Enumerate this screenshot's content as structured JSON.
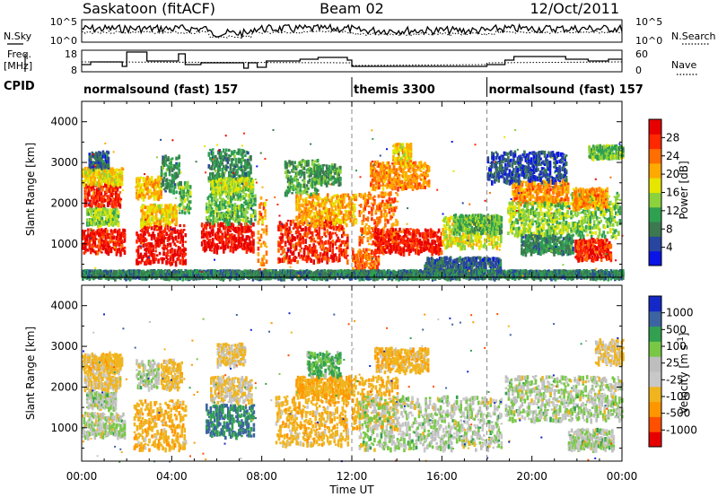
{
  "header": {
    "title_left": "Saskatoon (fitACF)",
    "title_center": "Beam 02",
    "title_right": "12/Oct/2011"
  },
  "sky_panel": {
    "left_label": "N.Sky",
    "right_label": "N.Search",
    "left_ticks": [
      "10^5",
      "10^0"
    ],
    "right_ticks": [
      "10^5",
      "10^0"
    ]
  },
  "freq_panel": {
    "left_label_line1": "Freq.",
    "left_label_line2": "[MHz]",
    "right_label": "Nave",
    "left_ticks": [
      "18",
      "8"
    ],
    "right_ticks": [
      "60",
      "0"
    ]
  },
  "cpid": {
    "label": "CPID",
    "segments": [
      {
        "name": "normalsound (fast) 157",
        "start_hour": 0.0,
        "end_hour": 12.0
      },
      {
        "name": "themis 3300",
        "start_hour": 12.0,
        "end_hour": 18.0
      },
      {
        "name": "normalsound (fast) 157",
        "start_hour": 18.0,
        "end_hour": 24.0
      }
    ]
  },
  "power_colorbar": {
    "label": "Power [dB]",
    "ticks": [
      "28",
      "24",
      "20",
      "16",
      "12",
      "8",
      "4"
    ],
    "colors": [
      "#0a14e6",
      "#2846a0",
      "#3c7850",
      "#2ea050",
      "#8cd23c",
      "#e6e600",
      "#ffaa00",
      "#ff6e00",
      "#ff2800",
      "#e60000"
    ]
  },
  "velocity_colorbar": {
    "label": "Velocity [m s^-1]",
    "ticks": [
      "1000",
      "500",
      "100",
      "25",
      "-25",
      "-100",
      "-500",
      "-1000"
    ],
    "colors": [
      "#e60000",
      "#ff5000",
      "#ff9600",
      "#f0b41e",
      "#c8c8c8",
      "#bebebe",
      "#78c846",
      "#32a050",
      "#3c64a0",
      "#1428c8"
    ]
  },
  "chart_data": {
    "type": "heatmap",
    "x_axis": {
      "label": "Time UT",
      "ticks": [
        "00:00",
        "04:00",
        "08:00",
        "12:00",
        "16:00",
        "20:00",
        "00:00"
      ],
      "tick_hours": [
        0,
        4,
        8,
        12,
        16,
        20,
        24
      ],
      "range_hours": [
        0,
        24
      ]
    },
    "y_axis": {
      "label": "Slant Range [km]",
      "ticks": [
        "1000",
        "2000",
        "3000",
        "4000"
      ],
      "tick_values": [
        1000,
        2000,
        3000,
        4000
      ],
      "range_km": [
        180,
        4500
      ]
    },
    "panels": [
      {
        "name": "Power",
        "scale": [
          0,
          30
        ],
        "bands": [
          {
            "t0": 0.0,
            "t1": 1.9,
            "r0": 800,
            "r1": 1400,
            "v": 27
          },
          {
            "t0": 0.1,
            "t1": 1.7,
            "r0": 1950,
            "r1": 2500,
            "v": 26
          },
          {
            "t0": 0.0,
            "t1": 1.8,
            "r0": 2500,
            "r1": 2900,
            "v": 17
          },
          {
            "t0": 0.2,
            "t1": 1.6,
            "r0": 1500,
            "r1": 1900,
            "v": 14
          },
          {
            "t0": 0.3,
            "t1": 1.2,
            "r0": 2900,
            "r1": 3300,
            "v": 6
          },
          {
            "t0": 2.4,
            "t1": 4.6,
            "r0": 550,
            "r1": 1500,
            "v": 28
          },
          {
            "t0": 2.6,
            "t1": 4.2,
            "r0": 1500,
            "r1": 2000,
            "v": 18
          },
          {
            "t0": 2.4,
            "t1": 3.5,
            "r0": 2150,
            "r1": 2700,
            "v": 19
          },
          {
            "t0": 3.5,
            "t1": 4.3,
            "r0": 2300,
            "r1": 3200,
            "v": 9
          },
          {
            "t0": 4.3,
            "t1": 4.8,
            "r0": 1750,
            "r1": 2550,
            "v": 12
          },
          {
            "t0": 5.6,
            "t1": 7.5,
            "r0": 2600,
            "r1": 3350,
            "v": 9
          },
          {
            "t0": 5.3,
            "t1": 7.6,
            "r0": 850,
            "r1": 1550,
            "v": 28
          },
          {
            "t0": 5.5,
            "t1": 7.7,
            "r0": 1550,
            "r1": 2300,
            "v": 12
          },
          {
            "t0": 5.7,
            "t1": 7.6,
            "r0": 2300,
            "r1": 2650,
            "v": 15
          },
          {
            "t0": 7.8,
            "t1": 8.2,
            "r0": 300,
            "r1": 2200,
            "v": 21
          },
          {
            "t0": 8.7,
            "t1": 11.8,
            "r0": 600,
            "r1": 1600,
            "v": 26
          },
          {
            "t0": 9.5,
            "t1": 12.2,
            "r0": 1500,
            "r1": 2250,
            "v": 20
          },
          {
            "t0": 9.0,
            "t1": 10.5,
            "r0": 2250,
            "r1": 3100,
            "v": 11
          },
          {
            "t0": 10.3,
            "t1": 11.5,
            "r0": 2500,
            "r1": 3000,
            "v": 10
          },
          {
            "t0": 12.3,
            "t1": 14.0,
            "r0": 1000,
            "r1": 2300,
            "v": 22
          },
          {
            "t0": 12.0,
            "t1": 13.2,
            "r0": 300,
            "r1": 900,
            "v": 23
          },
          {
            "t0": 13.0,
            "t1": 16.0,
            "r0": 800,
            "r1": 1400,
            "v": 27
          },
          {
            "t0": 16.0,
            "t1": 18.6,
            "r0": 950,
            "r1": 1700,
            "v": 16
          },
          {
            "t0": 16.5,
            "t1": 18.6,
            "r0": 1300,
            "r1": 1750,
            "v": 12
          },
          {
            "t0": 12.8,
            "t1": 15.4,
            "r0": 2400,
            "r1": 3050,
            "v": 21
          },
          {
            "t0": 15.2,
            "t1": 18.6,
            "r0": 300,
            "r1": 700,
            "v": 6
          },
          {
            "t0": 13.8,
            "t1": 14.6,
            "r0": 3000,
            "r1": 3500,
            "v": 18
          },
          {
            "t0": 19.1,
            "t1": 21.6,
            "r0": 2000,
            "r1": 2600,
            "v": 21
          },
          {
            "t0": 18.9,
            "t1": 21.6,
            "r0": 1250,
            "r1": 2050,
            "v": 14
          },
          {
            "t0": 19.5,
            "t1": 21.8,
            "r0": 800,
            "r1": 1250,
            "v": 9
          },
          {
            "t0": 21.7,
            "t1": 23.9,
            "r0": 1200,
            "r1": 2300,
            "v": 13
          },
          {
            "t0": 21.8,
            "t1": 23.3,
            "r0": 1900,
            "r1": 2400,
            "v": 21
          },
          {
            "t0": 21.9,
            "t1": 23.5,
            "r0": 650,
            "r1": 1150,
            "v": 26
          },
          {
            "t0": 22.5,
            "t1": 24.0,
            "r0": 3150,
            "r1": 3450,
            "v": 12
          },
          {
            "t0": 18.0,
            "t1": 21.5,
            "r0": 2550,
            "r1": 3300,
            "v": 5
          },
          {
            "t0": 0.0,
            "t1": 24.0,
            "r0": 200,
            "r1": 380,
            "v": 8
          }
        ]
      },
      {
        "name": "Velocity",
        "scale": [
          -1000,
          1000
        ],
        "bands": [
          {
            "t0": 0.0,
            "t1": 1.9,
            "r0": 800,
            "r1": 1400,
            "v": 0
          },
          {
            "t0": 0.1,
            "t1": 1.7,
            "r0": 1950,
            "r1": 2500,
            "v": -130
          },
          {
            "t0": 0.0,
            "t1": 1.8,
            "r0": 2500,
            "r1": 2850,
            "v": -160
          },
          {
            "t0": 0.2,
            "t1": 1.5,
            "r0": 1500,
            "r1": 1900,
            "v": 0
          },
          {
            "t0": 2.3,
            "t1": 4.6,
            "r0": 500,
            "r1": 1700,
            "v": -200
          },
          {
            "t0": 2.4,
            "t1": 3.4,
            "r0": 2000,
            "r1": 2700,
            "v": 0
          },
          {
            "t0": 3.5,
            "t1": 4.4,
            "r0": 2000,
            "r1": 2700,
            "v": -150
          },
          {
            "t0": 5.5,
            "t1": 7.6,
            "r0": 800,
            "r1": 1600,
            "v": 260
          },
          {
            "t0": 5.7,
            "t1": 7.5,
            "r0": 1650,
            "r1": 2300,
            "v": -90
          },
          {
            "t0": 6.0,
            "t1": 7.2,
            "r0": 2550,
            "r1": 3100,
            "v": -120
          },
          {
            "t0": 8.6,
            "t1": 11.8,
            "r0": 600,
            "r1": 1800,
            "v": -180
          },
          {
            "t0": 9.5,
            "t1": 12.0,
            "r0": 1800,
            "r1": 2300,
            "v": -220
          },
          {
            "t0": 10.0,
            "t1": 11.5,
            "r0": 2300,
            "r1": 2900,
            "v": 120
          },
          {
            "t0": 12.0,
            "t1": 14.0,
            "r0": 1000,
            "r1": 2300,
            "v": -200
          },
          {
            "t0": 12.3,
            "t1": 18.6,
            "r0": 500,
            "r1": 1800,
            "v": 0
          },
          {
            "t0": 13.0,
            "t1": 15.4,
            "r0": 2400,
            "r1": 3000,
            "v": -180
          },
          {
            "t0": 18.8,
            "t1": 24.0,
            "r0": 1200,
            "r1": 2300,
            "v": 0
          },
          {
            "t0": 21.6,
            "t1": 23.6,
            "r0": 500,
            "r1": 1000,
            "v": 0
          },
          {
            "t0": 22.8,
            "t1": 24.0,
            "r0": 2600,
            "r1": 3200,
            "v": -120
          }
        ]
      }
    ]
  }
}
